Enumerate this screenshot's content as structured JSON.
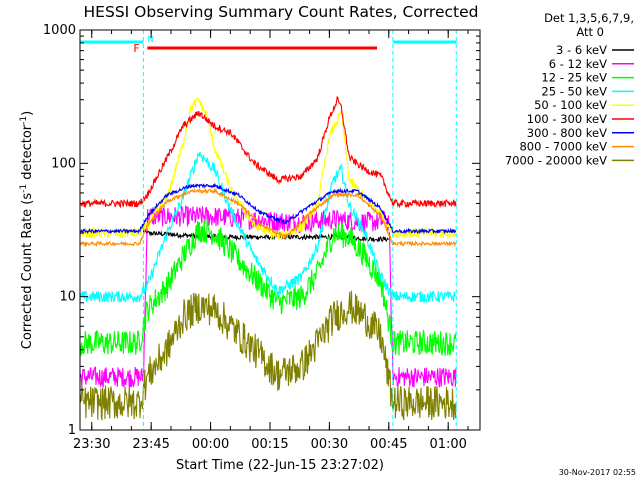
{
  "chart_data": {
    "type": "line",
    "title": "HESSI Observing Summary Count Rates, Corrected",
    "xlabel": "Start Time (22-Jun-15 23:27:02)",
    "ylabel": "Corrected Count Rate (s",
    "ylabel_sup": "-1",
    "ylabel_mid": " detector",
    "ylabel_sup2": "-1",
    "ylabel_end": ")",
    "x_tick_labels": [
      "23:30",
      "23:45",
      "00:00",
      "00:15",
      "00:30",
      "00:45",
      "01:00"
    ],
    "x_tick_minutes": [
      2.97,
      17.97,
      32.97,
      47.97,
      62.97,
      77.97,
      92.97
    ],
    "xlim_minutes": [
      0,
      101
    ],
    "y_scale": "log",
    "ylim": [
      1,
      1000
    ],
    "y_tick_labels": [
      "1",
      "10",
      "100",
      "1000"
    ],
    "y_tick_values": [
      1,
      10,
      100,
      1000
    ],
    "legend_header": [
      "Det 1,3,5,6,7,9,",
      "Att 0"
    ],
    "legend_position": "right",
    "timestamp": "30-Nov-2017 02:55",
    "flags": {
      "night_periods_minutes": [
        [
          0,
          16
        ],
        [
          79,
          95
        ]
      ],
      "night_color": "#00ffff",
      "saa_label": "N",
      "flare_label": "F",
      "flare_minutes": [
        17,
        75
      ],
      "flare_color": "#ff0000",
      "dashed_lines_minutes": [
        16,
        79,
        95
      ]
    },
    "series": [
      {
        "name": "3 - 6 keV",
        "color": "#000000",
        "t": [
          16,
          17,
          25,
          35,
          45,
          55,
          65,
          75,
          78
        ],
        "v": [
          31,
          30,
          29,
          28,
          28,
          28,
          28,
          27,
          27
        ]
      },
      {
        "name": "6 - 12 keV",
        "color": "#ff00ff",
        "t": [
          0,
          15,
          16,
          17,
          25,
          32,
          40,
          48,
          56,
          64,
          72,
          78,
          79,
          95
        ],
        "v": [
          2.5,
          2.5,
          2.5,
          40,
          40,
          40,
          39,
          37,
          36,
          38,
          36,
          37,
          2.5,
          2.5
        ]
      },
      {
        "name": "12 - 25 keV",
        "color": "#00ff00",
        "t": [
          0,
          15,
          17,
          22,
          26,
          30,
          34,
          38,
          44,
          50,
          56,
          60,
          64,
          68,
          72,
          76,
          79,
          95
        ],
        "v": [
          4.5,
          4.5,
          8,
          12,
          20,
          32,
          30,
          22,
          14,
          9,
          10,
          15,
          30,
          28,
          20,
          13,
          4.5,
          4.5
        ]
      },
      {
        "name": "25 - 50 keV",
        "color": "#00ffff",
        "t": [
          0,
          15,
          17,
          22,
          26,
          30,
          34,
          38,
          44,
          50,
          56,
          60,
          64,
          66,
          68,
          72,
          76,
          79,
          95
        ],
        "v": [
          10,
          10,
          12,
          30,
          55,
          120,
          90,
          45,
          20,
          11,
          14,
          24,
          75,
          90,
          48,
          30,
          14,
          10,
          10
        ]
      },
      {
        "name": "50 - 100 keV",
        "color": "#ffff00",
        "t": [
          0,
          15,
          17,
          22,
          26,
          28,
          30,
          32,
          34,
          38,
          44,
          50,
          56,
          60,
          63,
          66,
          68,
          72,
          76,
          79,
          95
        ],
        "v": [
          30,
          30,
          34,
          55,
          140,
          260,
          300,
          230,
          130,
          65,
          34,
          28,
          33,
          50,
          160,
          240,
          75,
          55,
          42,
          30,
          30
        ]
      },
      {
        "name": "100 - 300 keV",
        "color": "#ff0000",
        "t": [
          0,
          15,
          17,
          22,
          26,
          30,
          34,
          38,
          44,
          50,
          56,
          60,
          63,
          65,
          66,
          68,
          72,
          76,
          79,
          95
        ],
        "v": [
          50,
          50,
          58,
          110,
          190,
          240,
          190,
          170,
          100,
          75,
          80,
          110,
          220,
          300,
          260,
          110,
          90,
          80,
          50,
          50
        ]
      },
      {
        "name": "300 - 800 keV",
        "color": "#0000ff",
        "t": [
          0,
          15,
          17,
          22,
          28,
          34,
          40,
          46,
          52,
          58,
          64,
          70,
          76,
          79,
          95
        ],
        "v": [
          31,
          31,
          40,
          58,
          68,
          68,
          58,
          42,
          36,
          48,
          62,
          62,
          46,
          31,
          31
        ]
      },
      {
        "name": "800 - 7000 keV",
        "color": "#ff8c00",
        "t": [
          0,
          15,
          17,
          22,
          28,
          34,
          40,
          46,
          52,
          58,
          64,
          70,
          76,
          79,
          95
        ],
        "v": [
          25,
          25,
          34,
          52,
          62,
          62,
          50,
          34,
          28,
          42,
          58,
          58,
          40,
          25,
          25
        ]
      },
      {
        "name": "7000 - 20000 keV",
        "color": "#808000",
        "t": [
          0,
          15,
          17,
          22,
          26,
          30,
          34,
          38,
          44,
          50,
          56,
          60,
          64,
          68,
          72,
          76,
          79,
          95
        ],
        "v": [
          1.6,
          1.6,
          2.5,
          4,
          7,
          8.5,
          8,
          6,
          4,
          2.6,
          3,
          4.5,
          7,
          8.5,
          7,
          5,
          1.6,
          1.6
        ]
      }
    ]
  }
}
